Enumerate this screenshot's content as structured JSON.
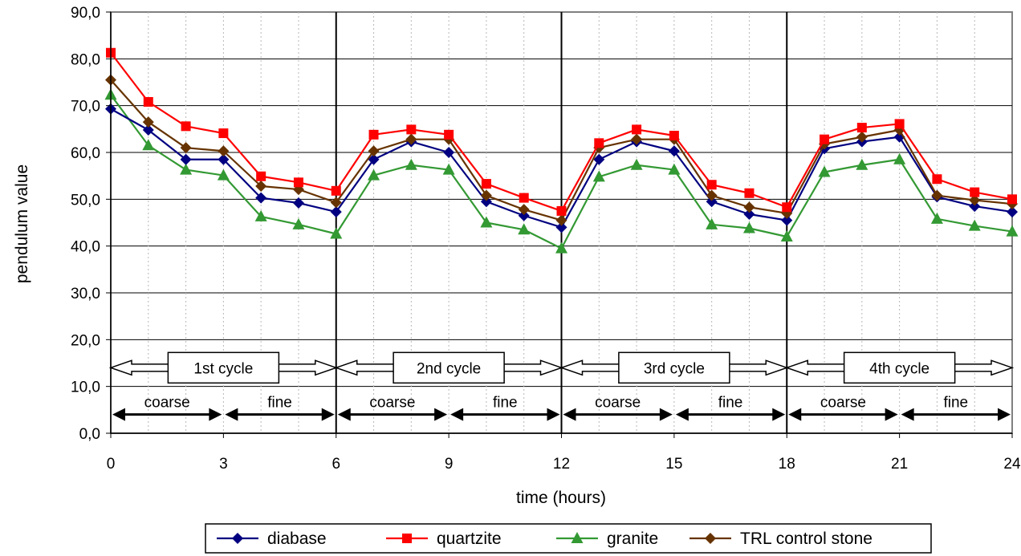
{
  "chart_data": {
    "type": "line",
    "xlabel": "time (hours)",
    "ylabel": "pendulum value",
    "xlim": [
      0,
      24
    ],
    "ylim": [
      0,
      90
    ],
    "x_ticks": [
      0,
      3,
      6,
      9,
      12,
      15,
      18,
      21,
      24
    ],
    "y_ticks": [
      "0,0",
      "10,0",
      "20,0",
      "30,0",
      "40,0",
      "50,0",
      "60,0",
      "70,0",
      "80,0",
      "90,0"
    ],
    "grid": "horizontal major, vertical minor dotted",
    "legend_position": "bottom",
    "x": [
      0,
      1,
      2,
      3,
      4,
      5,
      6,
      7,
      8,
      9,
      10,
      11,
      12,
      13,
      14,
      15,
      16,
      17,
      18,
      19,
      20,
      21,
      22,
      23,
      24
    ],
    "series": [
      {
        "name": "diabase",
        "color": "#000080",
        "marker": "diamond",
        "values": [
          69.3,
          64.8,
          58.5,
          58.5,
          50.3,
          49.2,
          47.3,
          58.5,
          62.3,
          60.0,
          49.5,
          46.5,
          44.0,
          58.5,
          62.3,
          60.3,
          49.5,
          46.8,
          45.5,
          60.8,
          62.3,
          63.3,
          50.5,
          48.5,
          47.3
        ]
      },
      {
        "name": "quartzite",
        "color": "#ff0000",
        "marker": "square",
        "values": [
          81.3,
          70.8,
          65.6,
          64.1,
          54.9,
          53.6,
          51.8,
          63.8,
          64.9,
          63.8,
          53.3,
          50.3,
          47.5,
          62.0,
          64.9,
          63.6,
          53.1,
          51.3,
          48.3,
          62.8,
          65.3,
          66.1,
          54.3,
          51.5,
          50.0
        ]
      },
      {
        "name": "granite",
        "color": "#339933",
        "marker": "triangle",
        "values": [
          72.3,
          61.5,
          56.3,
          55.1,
          46.3,
          44.6,
          42.6,
          55.1,
          57.3,
          56.3,
          45.0,
          43.5,
          39.5,
          54.8,
          57.3,
          56.3,
          44.6,
          43.8,
          42.0,
          55.8,
          57.3,
          58.5,
          45.8,
          44.3,
          43.1
        ]
      },
      {
        "name": "TRL control stone",
        "color": "#663300",
        "marker": "diamond",
        "values": [
          75.5,
          66.5,
          61.0,
          60.3,
          52.8,
          52.1,
          49.3,
          60.3,
          62.8,
          62.8,
          50.8,
          47.8,
          45.5,
          61.0,
          62.8,
          62.8,
          50.8,
          48.3,
          47.0,
          61.8,
          63.3,
          64.8,
          50.8,
          49.8,
          49.0
        ]
      }
    ],
    "cycle_dividers": [
      6,
      12,
      18
    ],
    "cycles": [
      {
        "label": "1st cycle",
        "start": 0,
        "end": 6
      },
      {
        "label": "2nd cycle",
        "start": 6,
        "end": 12
      },
      {
        "label": "3rd cycle",
        "start": 12,
        "end": 18
      },
      {
        "label": "4th cycle",
        "start": 18,
        "end": 24
      }
    ],
    "phases": [
      {
        "label": "coarse",
        "start": 0,
        "end": 3
      },
      {
        "label": "fine",
        "start": 3,
        "end": 6
      },
      {
        "label": "coarse",
        "start": 6,
        "end": 9
      },
      {
        "label": "fine",
        "start": 9,
        "end": 12
      },
      {
        "label": "coarse",
        "start": 12,
        "end": 15
      },
      {
        "label": "fine",
        "start": 15,
        "end": 18
      },
      {
        "label": "coarse",
        "start": 18,
        "end": 21
      },
      {
        "label": "fine",
        "start": 21,
        "end": 24
      }
    ]
  }
}
